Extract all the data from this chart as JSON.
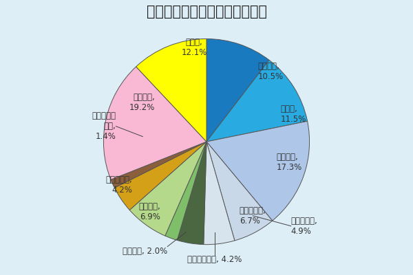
{
  "title": "＜大規模修纕工事の工事内訳＞",
  "segments": [
    {
      "label": "屋根防水,\n10.5%",
      "value": 10.5,
      "color": "#1a7abf"
    },
    {
      "label": "床防水,\n11.5%",
      "value": 11.5,
      "color": "#29abe2"
    },
    {
      "label": "外壁塗装,\n17.3%",
      "value": 17.3,
      "color": "#aec6e8"
    },
    {
      "label": "外壁タイル,\n6.7%",
      "value": 6.7,
      "color": "#c8d8e8"
    },
    {
      "label": "鉄部等塗装,\n4.9%",
      "value": 4.9,
      "color": "#d8e4ed"
    },
    {
      "label": "建具・金物等, 4.2%",
      "value": 4.2,
      "color": "#4a6741"
    },
    {
      "label": "共用内部, 2.0%",
      "value": 2.0,
      "color": "#7fbf6a"
    },
    {
      "label": "給水設備,\n6.9%",
      "value": 6.9,
      "color": "#b5d98a"
    },
    {
      "label": "その他設備,\n4.2%",
      "value": 4.2,
      "color": "#d4a017"
    },
    {
      "label": "外構・付属\n施設,\n1.4%",
      "value": 1.4,
      "color": "#8b5e3c"
    },
    {
      "label": "仮設工事,\n19.2%",
      "value": 19.2,
      "color": "#f9b8d4"
    },
    {
      "label": "その他,\n12.1%",
      "value": 12.1,
      "color": "#ffff00"
    }
  ],
  "background_color": "#ddeef6",
  "title_fontsize": 15,
  "label_fontsize": 8.5,
  "startangle": 90
}
